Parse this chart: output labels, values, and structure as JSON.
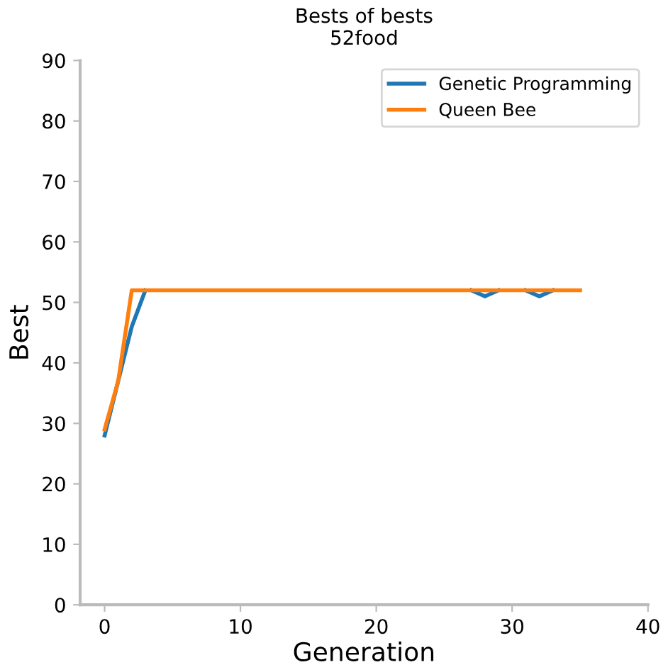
{
  "chart_data": {
    "type": "line",
    "title": "Bests of bests\n52food",
    "xlabel": "Generation",
    "ylabel": "Best",
    "x": [
      0,
      1,
      2,
      3,
      4,
      5,
      6,
      7,
      8,
      9,
      10,
      11,
      12,
      13,
      14,
      15,
      16,
      17,
      18,
      19,
      20,
      21,
      22,
      23,
      24,
      25,
      26,
      27,
      28,
      29,
      30,
      31,
      32,
      33,
      34,
      35
    ],
    "series": [
      {
        "name": "Genetic Programming",
        "color": "#1f77b4",
        "values": [
          28,
          37,
          46,
          52,
          null,
          null,
          null,
          null,
          null,
          null,
          null,
          null,
          null,
          null,
          null,
          null,
          null,
          null,
          null,
          null,
          null,
          null,
          null,
          null,
          null,
          null,
          null,
          52,
          51,
          52,
          null,
          52,
          51,
          52,
          null,
          null
        ]
      },
      {
        "name": "Queen Bee",
        "color": "#ff7f0e",
        "values": [
          29,
          37,
          52,
          52,
          52,
          52,
          52,
          52,
          52,
          52,
          52,
          52,
          52,
          52,
          52,
          52,
          52,
          52,
          52,
          52,
          52,
          52,
          52,
          52,
          52,
          52,
          52,
          52,
          52,
          52,
          52,
          52,
          52,
          52,
          52,
          52
        ]
      }
    ],
    "xlim": [
      -1.8,
      40
    ],
    "xticks": [
      0,
      10,
      20,
      30,
      40
    ],
    "ylim": [
      0,
      90
    ],
    "yticks": [
      0,
      10,
      20,
      30,
      40,
      50,
      60,
      70,
      80,
      90
    ],
    "legend": "top right",
    "grid": false,
    "line_style": "solid"
  }
}
